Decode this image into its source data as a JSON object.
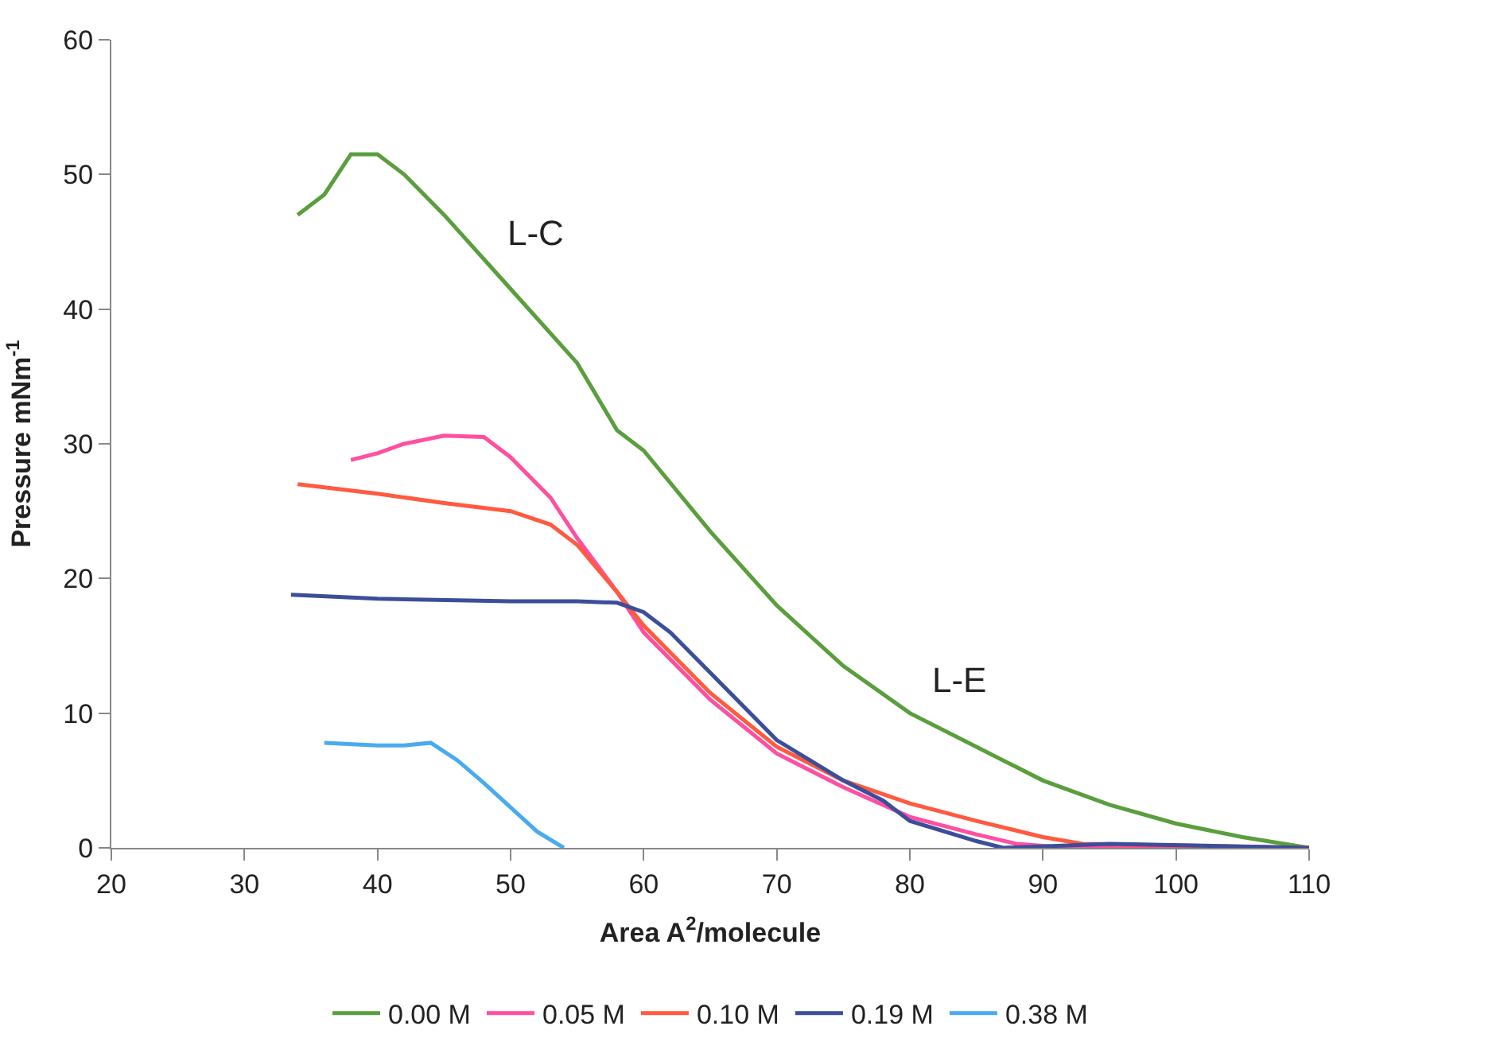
{
  "chart_data": {
    "type": "line",
    "xlabel": "Area A$^{2}$/molecule",
    "ylabel": "Pressure mNm$^{-1}$",
    "xlim": [
      20,
      110
    ],
    "xticks": [
      20,
      30,
      40,
      50,
      60,
      70,
      80,
      90,
      100,
      110
    ],
    "ylim": [
      0,
      60
    ],
    "yticks": [
      0,
      10,
      20,
      30,
      40,
      50,
      60
    ],
    "legend": "bottom",
    "marker": "none",
    "line_style": "solid",
    "annotations": [
      "L-C",
      "L-E"
    ],
    "series": [
      {
        "name": "0.00 M",
        "color": "#5a9e3e",
        "x": [
          34,
          36,
          38,
          40,
          42,
          45,
          50,
          55,
          58,
          60,
          65,
          70,
          75,
          80,
          85,
          90,
          95,
          100,
          105,
          110
        ],
        "values": [
          47,
          48.5,
          51.5,
          51.5,
          50,
          47,
          41.5,
          36,
          31,
          29.5,
          23.5,
          18,
          13.5,
          10,
          7.5,
          5,
          3.2,
          1.8,
          0.8,
          0
        ]
      },
      {
        "name": "0.05 M",
        "color": "#ff4fa0",
        "x": [
          38,
          40,
          42,
          45,
          48,
          50,
          53,
          55,
          58,
          60,
          65,
          70,
          75,
          80,
          85,
          88,
          92,
          110
        ],
        "values": [
          28.8,
          29.3,
          30,
          30.6,
          30.5,
          29,
          26,
          23,
          19,
          16,
          11,
          7,
          4.5,
          2.3,
          1,
          0.3,
          0,
          0
        ]
      },
      {
        "name": "0.10 M",
        "color": "#ff5a40",
        "x": [
          34,
          40,
          45,
          50,
          53,
          55,
          58,
          60,
          65,
          70,
          75,
          80,
          85,
          90,
          93,
          110
        ],
        "values": [
          27,
          26.3,
          25.6,
          25,
          24,
          22.5,
          19,
          16.5,
          11.5,
          7.5,
          5,
          3.3,
          2,
          0.8,
          0.3,
          0
        ]
      },
      {
        "name": "0.19 M",
        "color": "#3c4e9a",
        "x": [
          33.5,
          40,
          50,
          55,
          58,
          60,
          62,
          65,
          70,
          75,
          78,
          80,
          85,
          87,
          95,
          110
        ],
        "values": [
          18.8,
          18.5,
          18.3,
          18.3,
          18.2,
          17.5,
          16,
          13,
          8,
          5,
          3.5,
          2,
          0.5,
          0,
          0.3,
          0
        ]
      },
      {
        "name": "0.38 M",
        "color": "#4aaaf0",
        "x": [
          36,
          40,
          42,
          44,
          46,
          48,
          50,
          52,
          54
        ],
        "values": [
          7.8,
          7.6,
          7.6,
          7.8,
          6.5,
          4.8,
          3,
          1.2,
          0
        ]
      }
    ]
  }
}
